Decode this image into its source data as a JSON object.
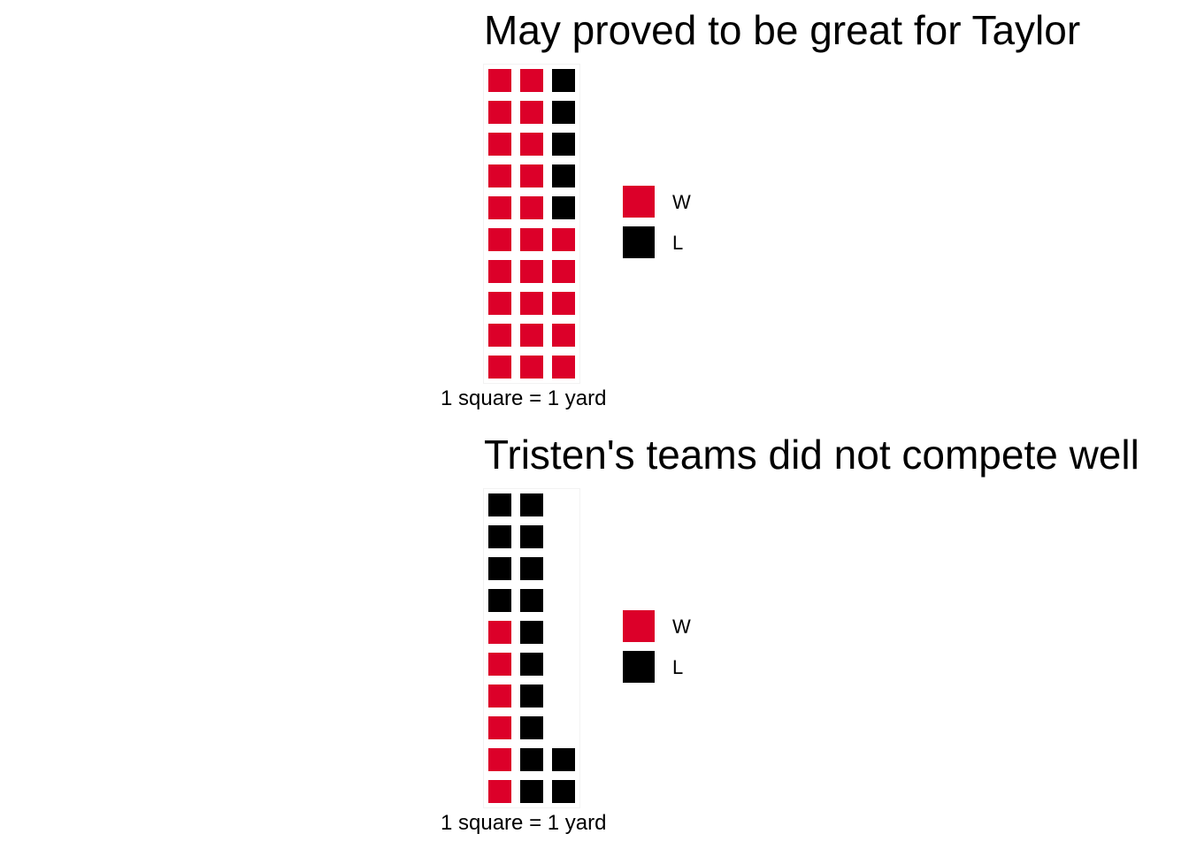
{
  "chart_data": [
    {
      "type": "waffle",
      "title": "May proved to be great for Taylor",
      "caption": "1 square = 1 yard",
      "rows": 10,
      "fill_order": "column-wise, bottom to top",
      "series": [
        {
          "name": "W",
          "value": 25,
          "color": "#dc0029"
        },
        {
          "name": "L",
          "value": 5,
          "color": "#000000"
        }
      ],
      "legend": {
        "position": "right",
        "items": [
          "W",
          "L"
        ]
      }
    },
    {
      "type": "waffle",
      "title": "Tristen's teams did not compete well",
      "caption": "1 square = 1 yard",
      "rows": 10,
      "fill_order": "column-wise, bottom to top",
      "series": [
        {
          "name": "W",
          "value": 6,
          "color": "#dc0029"
        },
        {
          "name": "L",
          "value": 16,
          "color": "#000000"
        }
      ],
      "legend": {
        "position": "right",
        "items": [
          "W",
          "L"
        ]
      }
    }
  ]
}
